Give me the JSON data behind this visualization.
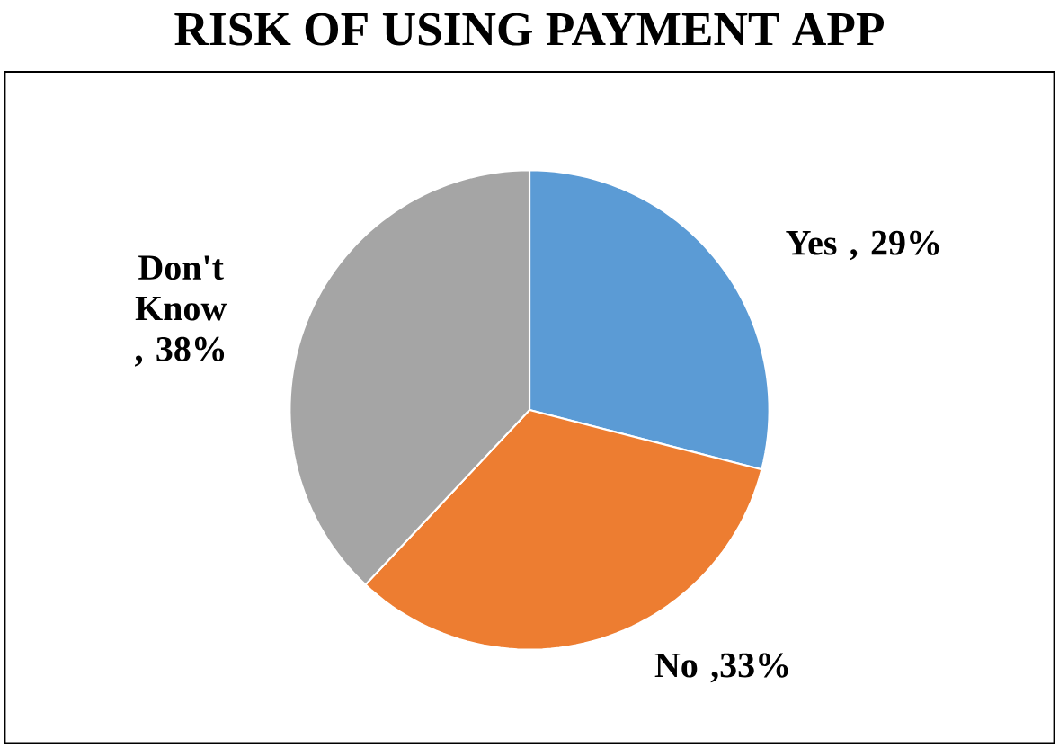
{
  "chart_data": {
    "type": "pie",
    "title": "RISK OF USING PAYMENT APP",
    "categories": [
      "Yes",
      "No",
      "Don't Know"
    ],
    "values": [
      29,
      33,
      38
    ],
    "colors": [
      "#5b9bd5",
      "#ed7d31",
      "#a5a5a5"
    ],
    "value_labels": [
      ", 29%",
      ",33%",
      ", 38%"
    ]
  }
}
